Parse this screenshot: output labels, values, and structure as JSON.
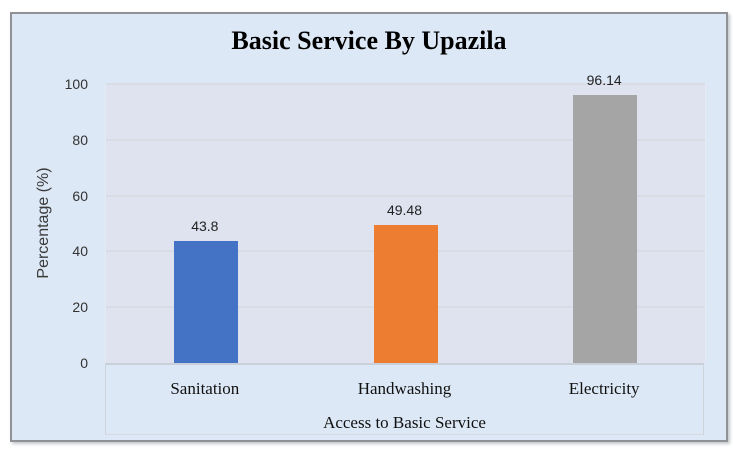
{
  "chart_data": {
    "type": "bar",
    "title": "Basic Service By Upazila",
    "xlabel": "Access to Basic Service",
    "ylabel": "Percentage (%)",
    "categories": [
      "Sanitation",
      "Handwashing",
      "Electricity"
    ],
    "values": [
      43.8,
      49.48,
      96.14
    ],
    "data_labels": [
      "43.8",
      "49.48",
      "96.14"
    ],
    "bar_colors": [
      "#4472c4",
      "#ed7d31",
      "#a5a5a5"
    ],
    "ylim": [
      0,
      100
    ],
    "yticks": [
      0,
      20,
      40,
      60,
      80,
      100
    ],
    "grid": "horizontal",
    "legend": "none",
    "colors": {
      "chart_background": "#dce8f5",
      "plot_background": "#dee3ef",
      "gridline": "#d7dce5",
      "axis_line": "#c9d0da",
      "frame_border": "#8f9194",
      "title_color": "#000000",
      "tick_label_color": "#333333",
      "value_label_color": "#222222",
      "axis_title_color": "#111111"
    }
  }
}
